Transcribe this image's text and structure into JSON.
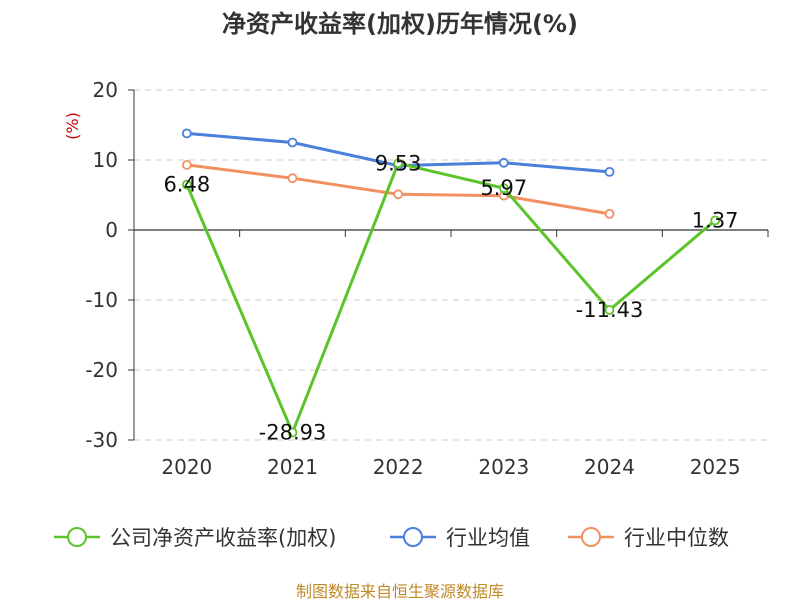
{
  "title": "净资产收益率(加权)历年情况(%)",
  "source_note": "制图数据来自恒生聚源数据库",
  "chart_data": {
    "type": "line",
    "title": "净资产收益率(加权)历年情况(%)",
    "ylabel": "(%)",
    "xlabel": "",
    "categories": [
      "2020",
      "2021",
      "2022",
      "2023",
      "2024",
      "2025"
    ],
    "ylim": [
      -30,
      20
    ],
    "yticks": [
      20,
      10,
      0,
      -10,
      -20,
      -30
    ],
    "yticklabels": [
      "20",
      "10",
      "0",
      "-10",
      "-20",
      "-30"
    ],
    "grid": true,
    "legend_position": "bottom",
    "series": [
      {
        "name": "公司净资产收益率(加权)",
        "color": "#5cc42b",
        "values": [
          6.48,
          -28.93,
          9.53,
          5.97,
          -11.43,
          1.37
        ],
        "labels": [
          "6.48",
          "-28.93",
          "9.53",
          "5.97",
          "-11.43",
          "1.37"
        ]
      },
      {
        "name": "行业均值",
        "color": "#4a7fdb",
        "values": [
          13.8,
          12.5,
          9.2,
          9.6,
          8.3,
          null
        ]
      },
      {
        "name": "行业中位数",
        "color": "#f39061",
        "values": [
          9.3,
          7.4,
          5.1,
          4.9,
          2.3,
          null
        ]
      }
    ]
  }
}
